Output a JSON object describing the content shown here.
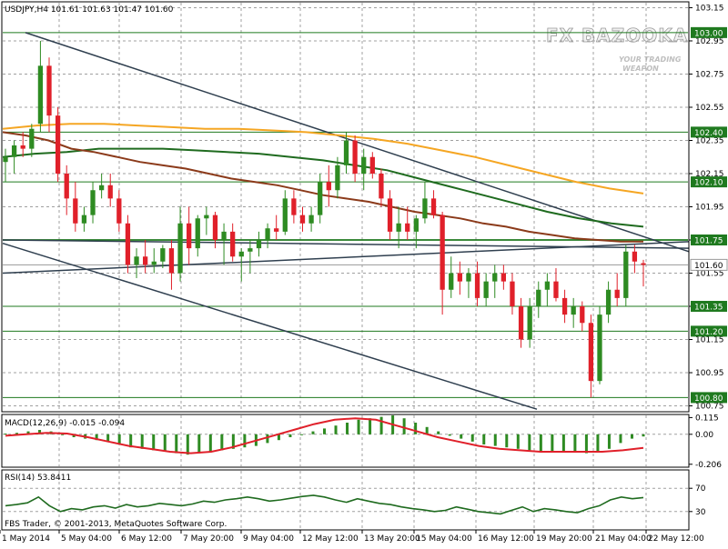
{
  "symbol_header": "USDJPY,H4  101.61 101.63 101.47 101.60",
  "watermark": {
    "brand": "FX BAZOOKA",
    "tagline1": "YOUR TRADING",
    "tagline2": "WEAPON"
  },
  "copyright": "FBS Trader, © 2001-2013, MetaQuotes Software Corp.",
  "colors": {
    "bull": "#2e8b22",
    "bear": "#e0202a",
    "ma_fast": "#8b3a1a",
    "ma_mid": "#1f6b1f",
    "ma_slow": "#f5a623",
    "trendline": "#2f3f4f",
    "hline": "#1f7a1f",
    "grid": "#a0a0a0",
    "axis": "#000000"
  },
  "chart_data": [
    {
      "type": "candlestick",
      "title": "USDJPY,H4",
      "ohlc_last": {
        "open": 101.61,
        "high": 101.63,
        "low": 101.47,
        "close": 101.6
      },
      "ylim": [
        100.72,
        103.18
      ],
      "y_ticks": [
        "103.15",
        "102.95",
        "102.75",
        "102.55",
        "102.35",
        "102.15",
        "101.95",
        "101.75",
        "101.55",
        "101.35",
        "101.15",
        "100.95",
        "100.75"
      ],
      "x_tick_labels": [
        "1 May 2014",
        "5 May 04:00",
        "6 May 12:00",
        "7 May 20:00",
        "9 May 04:00",
        "12 May 12:00",
        "13 May 20:00",
        "15 May 04:00",
        "16 May 12:00",
        "19 May 20:00",
        "21 May 04:00",
        "22 May 12:00"
      ],
      "price_level_labels": [
        "103.00",
        "102.40",
        "102.10",
        "101.75",
        "101.60",
        "101.35",
        "101.20",
        "100.80"
      ],
      "price_levels": [
        103.0,
        102.4,
        102.1,
        101.75,
        101.35,
        101.2,
        100.8
      ],
      "current_price": 101.6,
      "candles": [
        [
          102.22,
          102.3,
          102.1,
          102.25
        ],
        [
          102.25,
          102.35,
          102.15,
          102.32
        ],
        [
          102.32,
          102.4,
          102.25,
          102.3
        ],
        [
          102.3,
          102.45,
          102.25,
          102.42
        ],
        [
          102.45,
          102.95,
          102.4,
          102.8
        ],
        [
          102.8,
          102.85,
          102.4,
          102.5
        ],
        [
          102.5,
          102.55,
          102.1,
          102.15
        ],
        [
          102.15,
          102.2,
          101.9,
          102.0
        ],
        [
          102.0,
          102.1,
          101.8,
          101.85
        ],
        [
          101.85,
          101.95,
          101.8,
          101.9
        ],
        [
          101.9,
          102.1,
          101.85,
          102.05
        ],
        [
          102.05,
          102.15,
          102.0,
          102.08
        ],
        [
          102.08,
          102.15,
          101.95,
          102.0
        ],
        [
          102.0,
          102.05,
          101.8,
          101.85
        ],
        [
          101.85,
          101.9,
          101.55,
          101.6
        ],
        [
          101.6,
          101.7,
          101.52,
          101.65
        ],
        [
          101.65,
          101.75,
          101.55,
          101.6
        ],
        [
          101.6,
          101.7,
          101.55,
          101.62
        ],
        [
          101.62,
          101.72,
          101.58,
          101.7
        ],
        [
          101.7,
          101.75,
          101.45,
          101.55
        ],
        [
          101.55,
          101.95,
          101.5,
          101.85
        ],
        [
          101.85,
          101.95,
          101.6,
          101.7
        ],
        [
          101.7,
          101.9,
          101.65,
          101.88
        ],
        [
          101.88,
          101.95,
          101.78,
          101.9
        ],
        [
          101.9,
          101.92,
          101.7,
          101.75
        ],
        [
          101.75,
          101.85,
          101.6,
          101.8
        ],
        [
          101.8,
          101.85,
          101.62,
          101.65
        ],
        [
          101.65,
          101.7,
          101.5,
          101.68
        ],
        [
          101.68,
          101.75,
          101.55,
          101.7
        ],
        [
          101.7,
          101.8,
          101.65,
          101.75
        ],
        [
          101.75,
          101.85,
          101.7,
          101.82
        ],
        [
          101.82,
          101.9,
          101.75,
          101.8
        ],
        [
          101.8,
          102.05,
          101.78,
          102.0
        ],
        [
          102.0,
          102.05,
          101.85,
          101.9
        ],
        [
          101.9,
          101.95,
          101.8,
          101.85
        ],
        [
          101.85,
          101.95,
          101.8,
          101.9
        ],
        [
          101.9,
          102.15,
          101.85,
          102.1
        ],
        [
          102.1,
          102.2,
          101.95,
          102.05
        ],
        [
          102.05,
          102.25,
          102.0,
          102.2
        ],
        [
          102.2,
          102.4,
          102.15,
          102.35
        ],
        [
          102.35,
          102.38,
          102.1,
          102.15
        ],
        [
          102.15,
          102.3,
          102.05,
          102.25
        ],
        [
          102.25,
          102.28,
          102.12,
          102.15
        ],
        [
          102.15,
          102.18,
          101.95,
          102.0
        ],
        [
          102.0,
          102.05,
          101.75,
          101.8
        ],
        [
          101.8,
          101.95,
          101.7,
          101.85
        ],
        [
          101.85,
          101.95,
          101.75,
          101.8
        ],
        [
          101.8,
          101.9,
          101.7,
          101.88
        ],
        [
          101.88,
          102.1,
          101.85,
          102.0
        ],
        [
          102.0,
          102.05,
          101.88,
          101.9
        ],
        [
          101.9,
          101.92,
          101.3,
          101.45
        ],
        [
          101.45,
          101.65,
          101.4,
          101.55
        ],
        [
          101.55,
          101.62,
          101.42,
          101.5
        ],
        [
          101.5,
          101.58,
          101.4,
          101.55
        ],
        [
          101.55,
          101.62,
          101.35,
          101.4
        ],
        [
          101.4,
          101.55,
          101.35,
          101.5
        ],
        [
          101.5,
          101.6,
          101.4,
          101.55
        ],
        [
          101.55,
          101.6,
          101.45,
          101.5
        ],
        [
          101.5,
          101.55,
          101.3,
          101.35
        ],
        [
          101.35,
          101.4,
          101.1,
          101.15
        ],
        [
          101.15,
          101.4,
          101.1,
          101.35
        ],
        [
          101.35,
          101.5,
          101.28,
          101.45
        ],
        [
          101.45,
          101.55,
          101.35,
          101.5
        ],
        [
          101.5,
          101.58,
          101.38,
          101.4
        ],
        [
          101.4,
          101.45,
          101.25,
          101.3
        ],
        [
          101.3,
          101.4,
          101.22,
          101.35
        ],
        [
          101.35,
          101.38,
          101.2,
          101.25
        ],
        [
          101.25,
          101.3,
          100.8,
          100.9
        ],
        [
          100.9,
          101.35,
          100.88,
          101.3
        ],
        [
          101.3,
          101.5,
          101.25,
          101.45
        ],
        [
          101.45,
          101.55,
          101.35,
          101.4
        ],
        [
          101.4,
          101.72,
          101.35,
          101.68
        ],
        [
          101.68,
          101.72,
          101.55,
          101.62
        ],
        [
          101.61,
          101.63,
          101.47,
          101.6
        ]
      ],
      "ma_fast_values": [
        102.4,
        102.38,
        102.35,
        102.3,
        102.28,
        102.25,
        102.22,
        102.2,
        102.18,
        102.15,
        102.12,
        102.1,
        102.08,
        102.05,
        102.02,
        102.0,
        101.98,
        101.95,
        101.92,
        101.9,
        101.88,
        101.85,
        101.83,
        101.8,
        101.78,
        101.76,
        101.75,
        101.74,
        101.74
      ],
      "ma_mid_values": [
        102.25,
        102.27,
        102.28,
        102.3,
        102.3,
        102.3,
        102.29,
        102.28,
        102.27,
        102.25,
        102.23,
        102.2,
        102.17,
        102.12,
        102.07,
        102.02,
        101.97,
        101.92,
        101.88,
        101.85,
        101.83
      ],
      "ma_slow_values": [
        102.42,
        102.44,
        102.45,
        102.45,
        102.44,
        102.43,
        102.42,
        102.42,
        102.41,
        102.4,
        102.38,
        102.36,
        102.33,
        102.29,
        102.25,
        102.2,
        102.15,
        102.1,
        102.06,
        102.03
      ]
    },
    {
      "type": "bar",
      "title": "MACD(12,26,9) -0.015 -0.094",
      "y_ticks": [
        "0.115",
        "0.00",
        "-0.206"
      ],
      "ylim": [
        -0.22,
        0.13
      ],
      "histogram": [
        0.005,
        0.01,
        0.02,
        0.03,
        0.02,
        0.0,
        -0.02,
        -0.03,
        -0.04,
        -0.05,
        -0.07,
        -0.09,
        -0.1,
        -0.11,
        -0.12,
        -0.13,
        -0.14,
        -0.13,
        -0.12,
        -0.11,
        -0.1,
        -0.09,
        -0.08,
        -0.06,
        -0.04,
        -0.02,
        0.0,
        0.02,
        0.04,
        0.06,
        0.08,
        0.1,
        0.11,
        0.12,
        0.13,
        0.11,
        0.08,
        0.05,
        0.02,
        -0.01,
        -0.03,
        -0.05,
        -0.07,
        -0.08,
        -0.09,
        -0.1,
        -0.11,
        -0.12,
        -0.12,
        -0.12,
        -0.12,
        -0.13,
        -0.12,
        -0.1,
        -0.06,
        -0.03,
        -0.015
      ],
      "signal": [
        -0.01,
        0.0,
        0.01,
        0.005,
        -0.02,
        -0.05,
        -0.08,
        -0.1,
        -0.12,
        -0.13,
        -0.12,
        -0.09,
        -0.05,
        -0.01,
        0.03,
        0.07,
        0.1,
        0.11,
        0.1,
        0.06,
        0.02,
        -0.02,
        -0.05,
        -0.08,
        -0.1,
        -0.11,
        -0.12,
        -0.12,
        -0.12,
        -0.12,
        -0.11,
        -0.094
      ]
    },
    {
      "type": "line",
      "title": "RSI(14) 53.8411",
      "y_ticks": [
        "70",
        "30"
      ],
      "ylim": [
        0,
        100
      ],
      "values": [
        40,
        42,
        45,
        55,
        40,
        30,
        35,
        33,
        38,
        40,
        36,
        42,
        38,
        40,
        44,
        42,
        40,
        43,
        48,
        46,
        50,
        52,
        55,
        52,
        48,
        50,
        53,
        56,
        58,
        55,
        50,
        46,
        52,
        48,
        44,
        42,
        38,
        35,
        33,
        30,
        32,
        38,
        34,
        30,
        28,
        26,
        32,
        38,
        30,
        35,
        33,
        30,
        28,
        35,
        40,
        50,
        55,
        52,
        54
      ]
    }
  ]
}
